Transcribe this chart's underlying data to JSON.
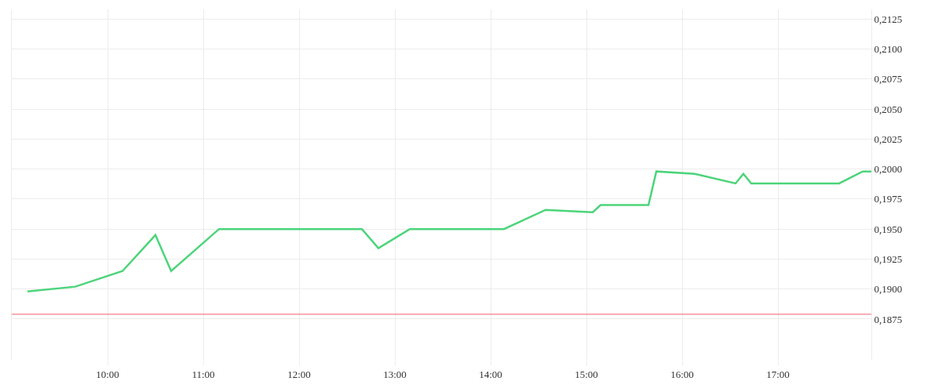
{
  "chart_data": {
    "type": "line",
    "x": [
      9.164,
      9.664,
      10.156,
      10.5,
      10.664,
      11.164,
      12.656,
      12.828,
      13.156,
      14.139,
      14.574,
      15.066,
      15.148,
      15.648,
      15.73,
      16.131,
      16.557,
      16.639,
      16.721,
      17.639,
      17.885,
      17.975
    ],
    "series": [
      {
        "color": "#4cd47a",
        "values": [
          0.1898,
          0.1902,
          0.1915,
          0.1945,
          0.1915,
          0.195,
          0.195,
          0.1934,
          0.195,
          0.195,
          0.1966,
          0.1964,
          0.197,
          0.197,
          0.1998,
          0.1996,
          0.1988,
          0.1996,
          0.1988,
          0.1988,
          0.1998,
          0.1998
        ]
      }
    ],
    "xlim": [
      9.0,
      17.975
    ],
    "xticks": [
      {
        "value": 10,
        "label": "10:00"
      },
      {
        "value": 11,
        "label": "11:00"
      },
      {
        "value": 12,
        "label": "12:00"
      },
      {
        "value": 13,
        "label": "13:00"
      },
      {
        "value": 14,
        "label": "14:00"
      },
      {
        "value": 15,
        "label": "15:00"
      },
      {
        "value": 16,
        "label": "16:00"
      },
      {
        "value": 17,
        "label": "17:00"
      }
    ],
    "ylim": [
      0.1841,
      0.2133
    ],
    "yticks": [
      {
        "value": 0.1875,
        "label": "0,1875"
      },
      {
        "value": 0.19,
        "label": "0,1900"
      },
      {
        "value": 0.1925,
        "label": "0,1925"
      },
      {
        "value": 0.195,
        "label": "0,1950"
      },
      {
        "value": 0.1975,
        "label": "0,1975"
      },
      {
        "value": 0.2,
        "label": "0,2000"
      },
      {
        "value": 0.2025,
        "label": "0,2025"
      },
      {
        "value": 0.205,
        "label": "0,2050"
      },
      {
        "value": 0.2075,
        "label": "0,2075"
      },
      {
        "value": 0.21,
        "label": "0,2100"
      },
      {
        "value": 0.2125,
        "label": "0,2125"
      }
    ],
    "ref_lines": [
      {
        "axis": "y",
        "value": 0.1879,
        "color": "#f0606a"
      }
    ],
    "grid": true,
    "marker": "none",
    "line_style": "solid"
  }
}
